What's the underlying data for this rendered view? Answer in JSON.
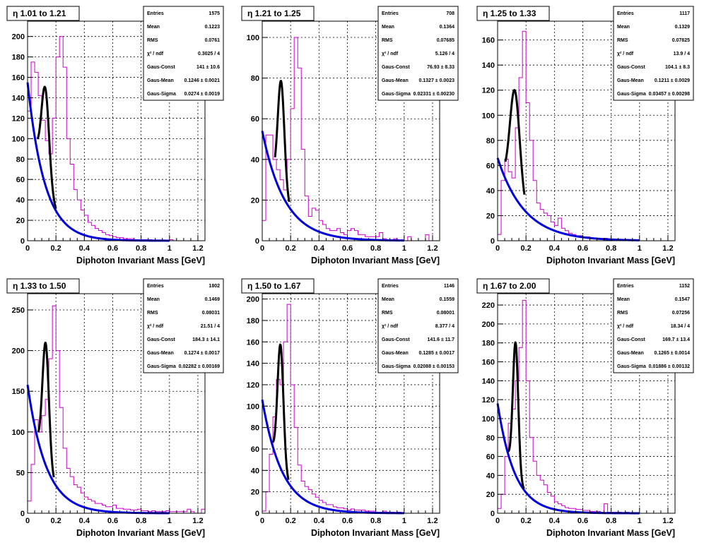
{
  "chart_data": [
    {
      "type": "histogram",
      "title": "η 1.01 to 1.21",
      "xlabel": "Diphoton Invariant Mass [GeV]",
      "xlim": [
        0,
        1.25
      ],
      "ylim": [
        0,
        215
      ],
      "xticks": [
        "0",
        "0.2",
        "0.4",
        "0.6",
        "0.8",
        "1",
        "1.2"
      ],
      "yticks": [
        0,
        20,
        40,
        60,
        80,
        100,
        120,
        140,
        160,
        180,
        200
      ],
      "grid": true,
      "colors": {
        "hist": "#cc00cc",
        "background_fit": "#0000dd",
        "signal_fit": "#000000"
      },
      "stats": [
        {
          "label": "Entries",
          "value": "1575"
        },
        {
          "label": "Mean",
          "value": "0.1223"
        },
        {
          "label": "RMS",
          "value": "0.0761"
        },
        {
          "label": "χ² / ndf",
          "value": "0.3025 / 4"
        },
        {
          "label": "Gaus-Const",
          "value": "141 ± 10.6"
        },
        {
          "label": "Gaus-Mean",
          "value": "0.1246 ± 0.0021"
        },
        {
          "label": "Gaus-Sigma",
          "value": "0.0274 ± 0.0019"
        }
      ],
      "hist_bin_width": 0.025,
      "hist_values": [
        127,
        175,
        165,
        142,
        118,
        98,
        85,
        120,
        180,
        200,
        170,
        100,
        75,
        50,
        40,
        30,
        25,
        18,
        15,
        12,
        10,
        8,
        6,
        5,
        4,
        3,
        3,
        2,
        2,
        2,
        1,
        1,
        1,
        1,
        1,
        0,
        0,
        0,
        0,
        0,
        1,
        0,
        0,
        0,
        0,
        0,
        0,
        0,
        0,
        0
      ],
      "bkg": {
        "A": 155,
        "tau": 0.12,
        "xmin": 0,
        "xmax": 1.0
      },
      "sig": {
        "amp": 95,
        "mean": 0.1246,
        "sigma": 0.0274,
        "xmin": 0.07,
        "xmax": 0.2
      }
    },
    {
      "type": "histogram",
      "title": "η 1.21 to 1.25",
      "xlabel": "Diphoton Invariant Mass [GeV]",
      "xlim": [
        0,
        1.25
      ],
      "ylim": [
        0,
        108
      ],
      "xticks": [
        "0",
        "0.2",
        "0.4",
        "0.6",
        "0.8",
        "1",
        "1.2"
      ],
      "yticks": [
        0,
        20,
        40,
        60,
        80,
        100
      ],
      "grid": true,
      "colors": {
        "hist": "#cc00cc",
        "background_fit": "#0000dd",
        "signal_fit": "#000000"
      },
      "stats": [
        {
          "label": "Entries",
          "value": "708"
        },
        {
          "label": "Mean",
          "value": "0.1364"
        },
        {
          "label": "RMS",
          "value": "0.07685"
        },
        {
          "label": "χ² / ndf",
          "value": "5.126 / 4"
        },
        {
          "label": "Gaus-Const",
          "value": "76.93 ± 8.33"
        },
        {
          "label": "Gaus-Mean",
          "value": "0.1327 ± 0.0023"
        },
        {
          "label": "Gaus-Sigma",
          "value": "0.02331 ± 0.00230"
        }
      ],
      "hist_bin_width": 0.025,
      "hist_values": [
        10,
        52,
        52,
        40,
        35,
        30,
        25,
        40,
        65,
        100,
        85,
        45,
        22,
        12,
        16,
        15,
        10,
        8,
        6,
        5,
        5,
        6,
        4,
        3,
        5,
        6,
        5,
        3,
        3,
        2,
        2,
        2,
        2,
        4,
        1,
        0,
        0,
        1,
        0,
        0,
        0,
        2,
        0,
        0,
        0,
        0,
        3,
        0,
        0,
        0
      ],
      "bkg": {
        "A": 54,
        "tau": 0.16,
        "xmin": 0,
        "xmax": 1.0
      },
      "sig": {
        "amp": 55,
        "mean": 0.1327,
        "sigma": 0.02331,
        "xmin": 0.09,
        "xmax": 0.19
      }
    },
    {
      "type": "histogram",
      "title": "η 1.25 to 1.33",
      "xlabel": "Diphoton Invariant Mass [GeV]",
      "xlim": [
        0,
        1.25
      ],
      "ylim": [
        0,
        175
      ],
      "xticks": [
        "0",
        "0.2",
        "0.4",
        "0.6",
        "0.8",
        "1",
        "1.2"
      ],
      "yticks": [
        0,
        20,
        40,
        60,
        80,
        100,
        120,
        140,
        160
      ],
      "grid": true,
      "colors": {
        "hist": "#cc00cc",
        "background_fit": "#0000dd",
        "signal_fit": "#000000"
      },
      "stats": [
        {
          "label": "Entries",
          "value": "1117"
        },
        {
          "label": "Mean",
          "value": "0.1329"
        },
        {
          "label": "RMS",
          "value": "0.07825"
        },
        {
          "label": "χ² / ndf",
          "value": "13.9 / 4"
        },
        {
          "label": "Gaus-Const",
          "value": "104.1 ± 8.3"
        },
        {
          "label": "Gaus-Mean",
          "value": "0.1211 ± 0.0029"
        },
        {
          "label": "Gaus-Sigma",
          "value": "0.03457 ± 0.00298"
        }
      ],
      "hist_bin_width": 0.025,
      "hist_values": [
        5,
        48,
        65,
        55,
        50,
        90,
        130,
        167,
        110,
        80,
        48,
        30,
        25,
        22,
        20,
        15,
        12,
        18,
        10,
        8,
        6,
        5,
        4,
        4,
        3,
        3,
        2,
        2,
        2,
        1,
        2,
        1,
        1,
        1,
        1,
        0,
        1,
        0,
        0,
        0,
        0,
        0,
        0,
        0,
        0,
        0,
        0,
        0,
        0,
        0
      ],
      "bkg": {
        "A": 66,
        "tau": 0.19,
        "xmin": 0,
        "xmax": 1.0
      },
      "sig": {
        "amp": 85,
        "mean": 0.1211,
        "sigma": 0.03457,
        "xmin": 0.055,
        "xmax": 0.19
      }
    },
    {
      "type": "histogram",
      "title": "η 1.33 to 1.50",
      "xlabel": "Diphoton Invariant Mass [GeV]",
      "xlim": [
        0,
        1.25
      ],
      "ylim": [
        0,
        270
      ],
      "xticks": [
        "0",
        "0.2",
        "0.4",
        "0.6",
        "0.8",
        "1",
        "1.2"
      ],
      "yticks": [
        0,
        50,
        100,
        150,
        200,
        250
      ],
      "grid": true,
      "colors": {
        "hist": "#cc00cc",
        "background_fit": "#0000dd",
        "signal_fit": "#000000"
      },
      "stats": [
        {
          "label": "Entries",
          "value": "1802"
        },
        {
          "label": "Mean",
          "value": "0.1469"
        },
        {
          "label": "RMS",
          "value": "0.08031"
        },
        {
          "label": "χ² / ndf",
          "value": "21.51 / 4"
        },
        {
          "label": "Gaus-Const",
          "value": "184.3 ± 14.1"
        },
        {
          "label": "Gaus-Mean",
          "value": "0.1274 ± 0.0017"
        },
        {
          "label": "Gaus-Sigma",
          "value": "0.02282 ± 0.00169"
        }
      ],
      "hist_bin_width": 0.025,
      "hist_values": [
        15,
        60,
        115,
        100,
        120,
        140,
        190,
        255,
        200,
        130,
        80,
        55,
        45,
        35,
        32,
        25,
        20,
        17,
        15,
        12,
        12,
        10,
        8,
        8,
        10,
        6,
        6,
        5,
        5,
        4,
        4,
        5,
        3,
        3,
        2,
        3,
        2,
        2,
        2,
        3,
        2,
        2,
        2,
        2,
        2,
        5,
        2,
        0,
        0,
        5
      ],
      "bkg": {
        "A": 158,
        "tau": 0.13,
        "xmin": 0,
        "xmax": 1.0
      },
      "sig": {
        "amp": 150,
        "mean": 0.1274,
        "sigma": 0.02282,
        "xmin": 0.075,
        "xmax": 0.185
      }
    },
    {
      "type": "histogram",
      "title": "η 1.50 to 1.67",
      "xlabel": "Diphoton Invariant Mass [GeV]",
      "xlim": [
        0,
        1.25
      ],
      "ylim": [
        0,
        205
      ],
      "xticks": [
        "0",
        "0.2",
        "0.4",
        "0.6",
        "0.8",
        "1",
        "1.2"
      ],
      "yticks": [
        0,
        20,
        40,
        60,
        80,
        100,
        120,
        140,
        160,
        180,
        200
      ],
      "grid": true,
      "colors": {
        "hist": "#cc00cc",
        "background_fit": "#0000dd",
        "signal_fit": "#000000"
      },
      "stats": [
        {
          "label": "Entries",
          "value": "1146"
        },
        {
          "label": "Mean",
          "value": "0.1559"
        },
        {
          "label": "RMS",
          "value": "0.08001"
        },
        {
          "label": "χ² / ndf",
          "value": "8.377 / 4"
        },
        {
          "label": "Gaus-Const",
          "value": "141.6 ± 11.7"
        },
        {
          "label": "Gaus-Mean",
          "value": "0.1285 ± 0.0017"
        },
        {
          "label": "Gaus-Sigma",
          "value": "0.02088 ± 0.00153"
        }
      ],
      "hist_bin_width": 0.025,
      "hist_values": [
        2,
        20,
        55,
        90,
        125,
        120,
        160,
        195,
        120,
        80,
        45,
        30,
        25,
        22,
        18,
        15,
        12,
        10,
        8,
        8,
        6,
        5,
        5,
        4,
        3,
        4,
        3,
        3,
        3,
        2,
        2,
        2,
        1,
        1,
        2,
        1,
        1,
        0,
        1,
        0,
        0,
        0,
        0,
        0,
        0,
        0,
        0,
        0,
        0,
        0
      ],
      "bkg": {
        "A": 106,
        "tau": 0.14,
        "xmin": 0,
        "xmax": 1.0
      },
      "sig": {
        "amp": 115,
        "mean": 0.1285,
        "sigma": 0.02088,
        "xmin": 0.075,
        "xmax": 0.185
      }
    },
    {
      "type": "histogram",
      "title": "η 1.67 to 2.00",
      "xlabel": "Diphoton Invariant Mass [GeV]",
      "xlim": [
        0,
        1.25
      ],
      "ylim": [
        0,
        232
      ],
      "xticks": [
        "0",
        "0.2",
        "0.4",
        "0.6",
        "0.8",
        "1",
        "1.2"
      ],
      "yticks": [
        0,
        20,
        40,
        60,
        80,
        100,
        120,
        140,
        160,
        180,
        200,
        220
      ],
      "grid": true,
      "colors": {
        "hist": "#cc00cc",
        "background_fit": "#0000dd",
        "signal_fit": "#000000"
      },
      "stats": [
        {
          "label": "Entries",
          "value": "1152"
        },
        {
          "label": "Mean",
          "value": "0.1547"
        },
        {
          "label": "RMS",
          "value": "0.07256"
        },
        {
          "label": "χ² / ndf",
          "value": "18.34 / 4"
        },
        {
          "label": "Gaus-Const",
          "value": "169.7 ± 13.4"
        },
        {
          "label": "Gaus-Mean",
          "value": "0.1265 ± 0.0014"
        },
        {
          "label": "Gaus-Sigma",
          "value": "0.01886 ± 0.00132"
        }
      ],
      "hist_bin_width": 0.025,
      "hist_values": [
        5,
        20,
        60,
        95,
        110,
        140,
        175,
        225,
        140,
        80,
        55,
        40,
        35,
        30,
        22,
        18,
        12,
        10,
        8,
        6,
        5,
        5,
        4,
        4,
        3,
        3,
        2,
        2,
        2,
        1,
        10,
        1,
        1,
        1,
        1,
        0,
        1,
        0,
        0,
        0,
        0,
        0,
        0,
        0,
        0,
        0,
        0,
        0,
        0,
        0
      ],
      "bkg": {
        "A": 116,
        "tau": 0.12,
        "xmin": 0,
        "xmax": 1.0
      },
      "sig": {
        "amp": 140,
        "mean": 0.1265,
        "sigma": 0.01886,
        "xmin": 0.075,
        "xmax": 0.185
      }
    }
  ]
}
